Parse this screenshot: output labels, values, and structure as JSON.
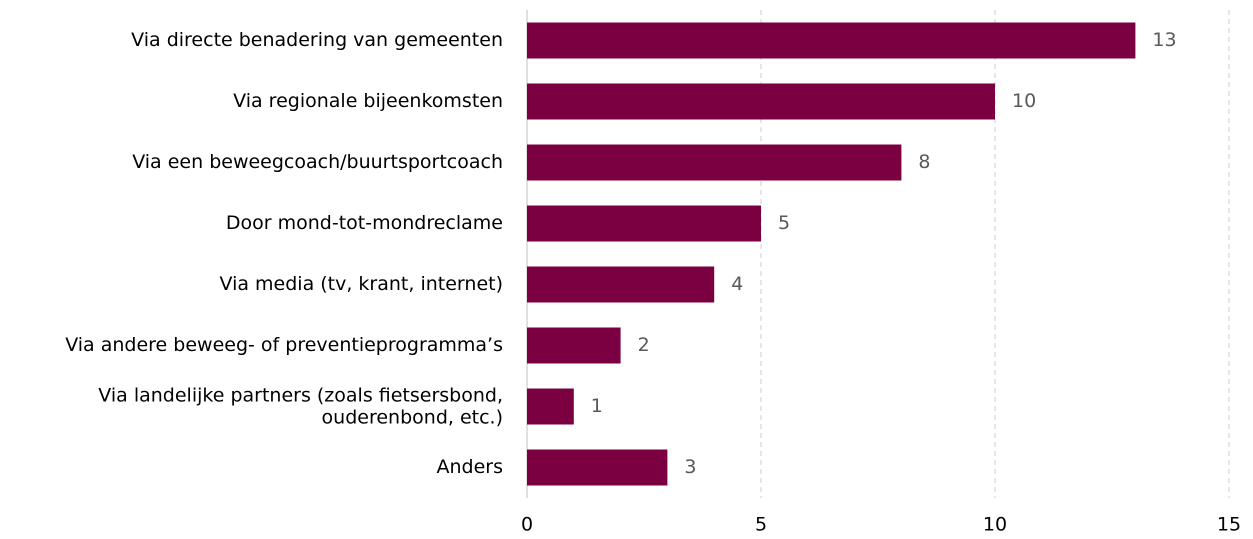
{
  "chart_data": {
    "type": "bar",
    "orientation": "horizontal",
    "categories": [
      "Via directe benadering van gemeenten",
      "Via regionale bijeenkomsten",
      "Via een beweegcoach/buurtsportcoach",
      "Door mond-tot-mondreclame",
      "Via media (tv, krant, internet)",
      "Via andere beweeg- of preventieprogramma’s",
      "Via landelijke partners (zoals fietsersbond,\nouderenbond, etc.)",
      "Anders"
    ],
    "values": [
      13,
      10,
      8,
      5,
      4,
      2,
      1,
      3
    ],
    "color": "#7b0041",
    "xlim": [
      0,
      15
    ],
    "xticks": [
      0,
      5,
      10,
      15
    ],
    "grid": true
  }
}
